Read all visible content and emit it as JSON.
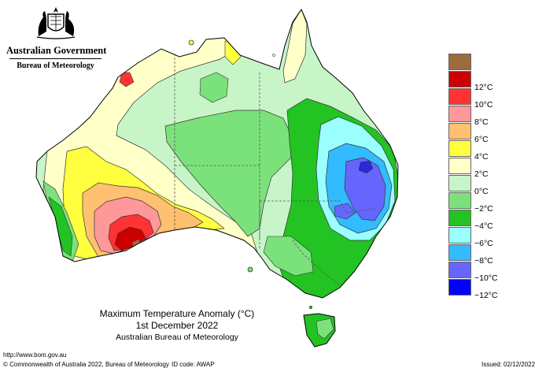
{
  "agency": {
    "organisation": "Australian Government",
    "bureau": "Bureau of Meteorology"
  },
  "title": {
    "line1": "Maximum Temperature Anomaly (°C)",
    "line2": "1st December 2022",
    "line3": "Australian Bureau of Meteorology"
  },
  "legend": [
    {
      "label": "",
      "color": "#9c6b3e"
    },
    {
      "label": "12°C",
      "color": "#cc0000"
    },
    {
      "label": "10°C",
      "color": "#ff3333"
    },
    {
      "label": "8°C",
      "color": "#ff9999"
    },
    {
      "label": "6°C",
      "color": "#ffc070"
    },
    {
      "label": "4°C",
      "color": "#ffff40"
    },
    {
      "label": "2°C",
      "color": "#ffffc8"
    },
    {
      "label": "0°C",
      "color": "#c8f5c8"
    },
    {
      "label": "−2°C",
      "color": "#7be27b"
    },
    {
      "label": "−4°C",
      "color": "#22c322"
    },
    {
      "label": "−6°C",
      "color": "#99ffff"
    },
    {
      "label": "−8°C",
      "color": "#33bbff"
    },
    {
      "label": "−10°C",
      "color": "#6666ff"
    },
    {
      "label": "−12°C",
      "color": "#0000ff"
    }
  ],
  "footer": {
    "url": "http://www.bom.gov.au",
    "copyright": "© Commonwealth of Australia 2022, Bureau of Meteorology",
    "id_code": "ID code: AWAP",
    "issued": "Issued: 02/12/2022"
  },
  "colors": {
    "ocean": "#ffffff",
    "base_land": "#c8f5c8",
    "coast": "#000000",
    "state_border": "#555555"
  }
}
